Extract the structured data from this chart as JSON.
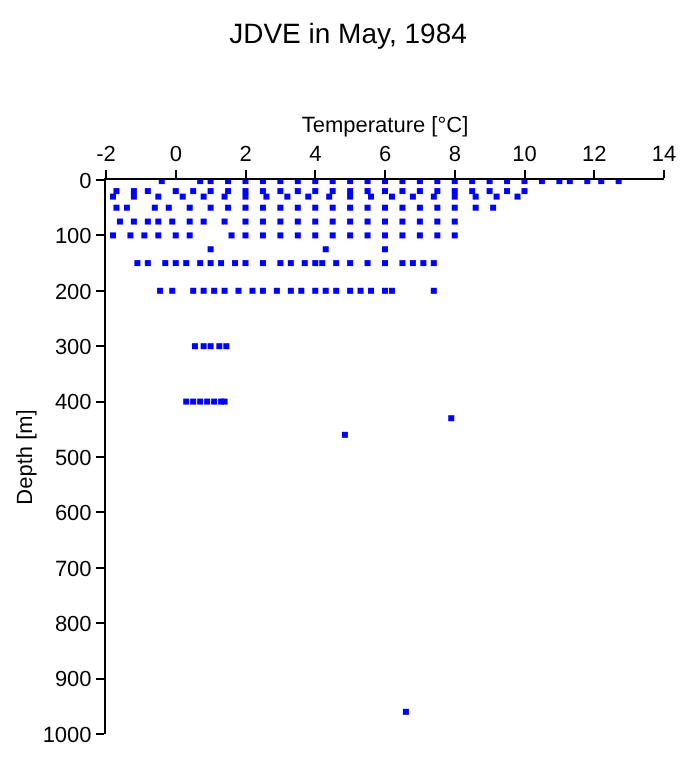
{
  "chart_data": {
    "type": "scatter",
    "title": "JDVE in May, 1984",
    "xlabel": "Temperature [°C]",
    "ylabel": "Depth [m]",
    "x": [
      -0.4,
      0.7,
      1.0,
      1.5,
      2,
      2.5,
      3,
      3.5,
      4,
      4.5,
      5,
      5.5,
      6,
      6.5,
      7,
      7.5,
      8,
      8.5,
      9,
      9.5,
      10,
      10.5,
      11,
      11.3,
      11.8,
      12.2,
      12.7,
      -1.7,
      -1.2,
      -0.8,
      0,
      0.5,
      1,
      1.5,
      2,
      2.5,
      3,
      3.5,
      4,
      4.5,
      5,
      5.5,
      6,
      6.5,
      7,
      7.5,
      8,
      8.5,
      9,
      9.5,
      10,
      -1.8,
      -1.2,
      -0.5,
      0.2,
      0.8,
      1.4,
      2,
      2.6,
      3.2,
      3.8,
      4.4,
      5,
      5.6,
      6.2,
      6.8,
      7.4,
      8,
      8.6,
      9.2,
      9.8,
      -1.7,
      -1.4,
      -0.6,
      -0.2,
      0.4,
      1.0,
      1.5,
      2,
      2.5,
      3,
      3.5,
      4,
      4.5,
      5,
      5.5,
      6,
      6.5,
      7,
      7.5,
      8,
      8.6,
      9.1,
      -1.6,
      -1.2,
      -0.8,
      -0.5,
      -0.1,
      0.4,
      0.8,
      1.4,
      2,
      2.5,
      3,
      3.5,
      4,
      4.5,
      5,
      5.5,
      6,
      6.5,
      7,
      7.5,
      8.0,
      -1.8,
      -1.3,
      -0.9,
      -0.5,
      0,
      0.4,
      1.6,
      2,
      2.5,
      3,
      3.5,
      4,
      4.5,
      5,
      5.5,
      6,
      6.5,
      7,
      7.5,
      8,
      1.0,
      4.3,
      6.0,
      -1.1,
      -0.8,
      -0.3,
      0,
      0.3,
      0.7,
      1,
      1.3,
      1.7,
      2,
      2.5,
      3,
      3.3,
      3.7,
      4,
      4.2,
      4.6,
      5,
      5.5,
      6,
      6.5,
      6.8,
      7.1,
      7.4,
      -0.45,
      -0.1,
      0.5,
      0.8,
      1.1,
      1.4,
      1.8,
      2.2,
      2.5,
      2.9,
      3.3,
      3.6,
      4,
      4.3,
      4.6,
      5,
      5.3,
      5.6,
      6,
      6.2,
      7.4,
      0.55,
      0.8,
      1.0,
      1.25,
      1.45,
      0.3,
      0.5,
      0.7,
      0.9,
      1.1,
      1.3,
      1.4,
      7.9,
      4.85,
      6.6
    ],
    "values": [
      2,
      2,
      2,
      2,
      2,
      2,
      2,
      2,
      2,
      2,
      2,
      2,
      2,
      2,
      2,
      2,
      2,
      2,
      2,
      2,
      2,
      2,
      2,
      2,
      2,
      2,
      2,
      20,
      20,
      20,
      20,
      20,
      20,
      20,
      20,
      20,
      20,
      20,
      20,
      20,
      20,
      20,
      20,
      20,
      20,
      20,
      20,
      20,
      20,
      20,
      20,
      30,
      30,
      30,
      30,
      30,
      30,
      30,
      30,
      30,
      30,
      30,
      30,
      30,
      30,
      30,
      30,
      30,
      30,
      30,
      30,
      50,
      50,
      50,
      50,
      50,
      50,
      50,
      50,
      50,
      50,
      50,
      50,
      50,
      50,
      50,
      50,
      50,
      50,
      50,
      50,
      50,
      50,
      75,
      75,
      75,
      75,
      75,
      75,
      75,
      75,
      75,
      75,
      75,
      75,
      75,
      75,
      75,
      75,
      75,
      75,
      75,
      75,
      75,
      100,
      100,
      100,
      100,
      100,
      100,
      100,
      100,
      100,
      100,
      100,
      100,
      100,
      100,
      100,
      100,
      100,
      100,
      100,
      100,
      125,
      125,
      125,
      150,
      150,
      150,
      150,
      150,
      150,
      150,
      150,
      150,
      150,
      150,
      150,
      150,
      150,
      150,
      150,
      150,
      150,
      150,
      150,
      150,
      150,
      150,
      150,
      200,
      200,
      200,
      200,
      200,
      200,
      200,
      200,
      200,
      200,
      200,
      200,
      200,
      200,
      200,
      200,
      200,
      200,
      200,
      200,
      200,
      300,
      300,
      300,
      300,
      300,
      400,
      400,
      400,
      400,
      400,
      400,
      400,
      430,
      460,
      960
    ],
    "color": "#0000ff",
    "marker": "square",
    "xlim": [
      -2,
      14
    ],
    "xticks": [
      -2,
      0,
      2,
      4,
      6,
      8,
      10,
      12,
      14
    ],
    "ylim": [
      1000,
      0
    ],
    "yticks": [
      0,
      100,
      200,
      300,
      400,
      500,
      600,
      700,
      800,
      900,
      1000
    ]
  }
}
